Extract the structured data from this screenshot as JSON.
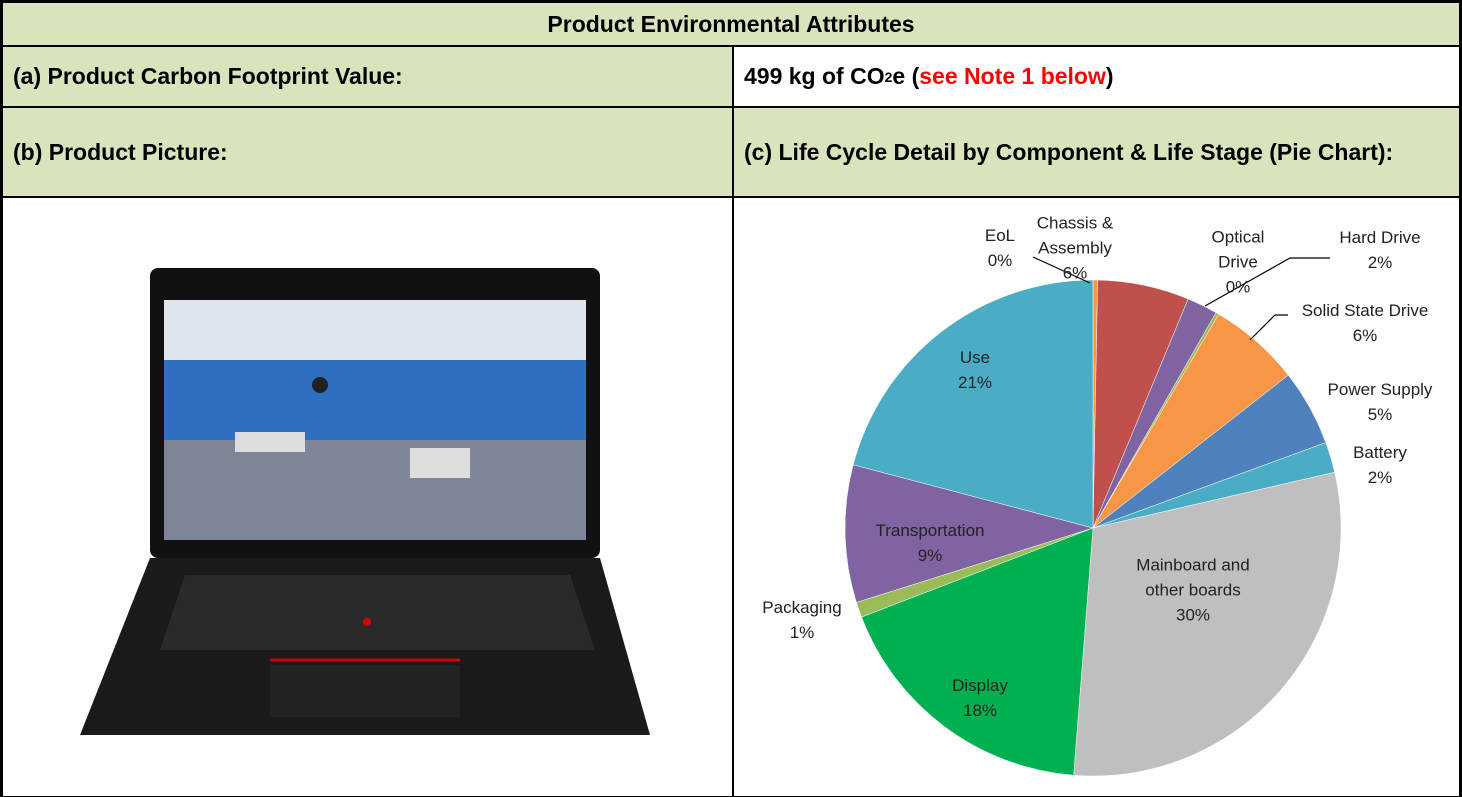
{
  "title": "Product Environmental Attributes",
  "carbon_footprint": {
    "label": "(a) Product Carbon Footprint Value:",
    "value_prefix": "499 kg of CO",
    "value_subscript": "2",
    "value_suffix": "e (",
    "note": "see Note 1 below",
    "close": ")"
  },
  "picture": {
    "label": "(b) Product Picture:"
  },
  "life_cycle": {
    "label": "(c) Life Cycle Detail by Component & Life Stage (Pie Chart):"
  },
  "chart_data": {
    "type": "pie",
    "categories": [
      "EoL",
      "Chassis & Assembly",
      "Hard Drive",
      "Optical Drive",
      "Solid State Drive",
      "Power Supply",
      "Battery",
      "Mainboard and other boards",
      "Display",
      "Packaging",
      "Transportation",
      "Use"
    ],
    "values": [
      0.3,
      6,
      2,
      0.2,
      6,
      5,
      2,
      30,
      18,
      1,
      9,
      21
    ],
    "value_labels": [
      "0%",
      "6%",
      "2%",
      "0%",
      "6%",
      "5%",
      "2%",
      "30%",
      "18%",
      "1%",
      "9%",
      "21%"
    ],
    "colors": [
      "#f79646",
      "#c0504d",
      "#8064a2",
      "#9bbb59",
      "#f79646",
      "#4f81bd",
      "#4bacc6",
      "#bfbfbf",
      "#00b050",
      "#9bbb59",
      "#8064a2",
      "#4bacc6"
    ]
  }
}
